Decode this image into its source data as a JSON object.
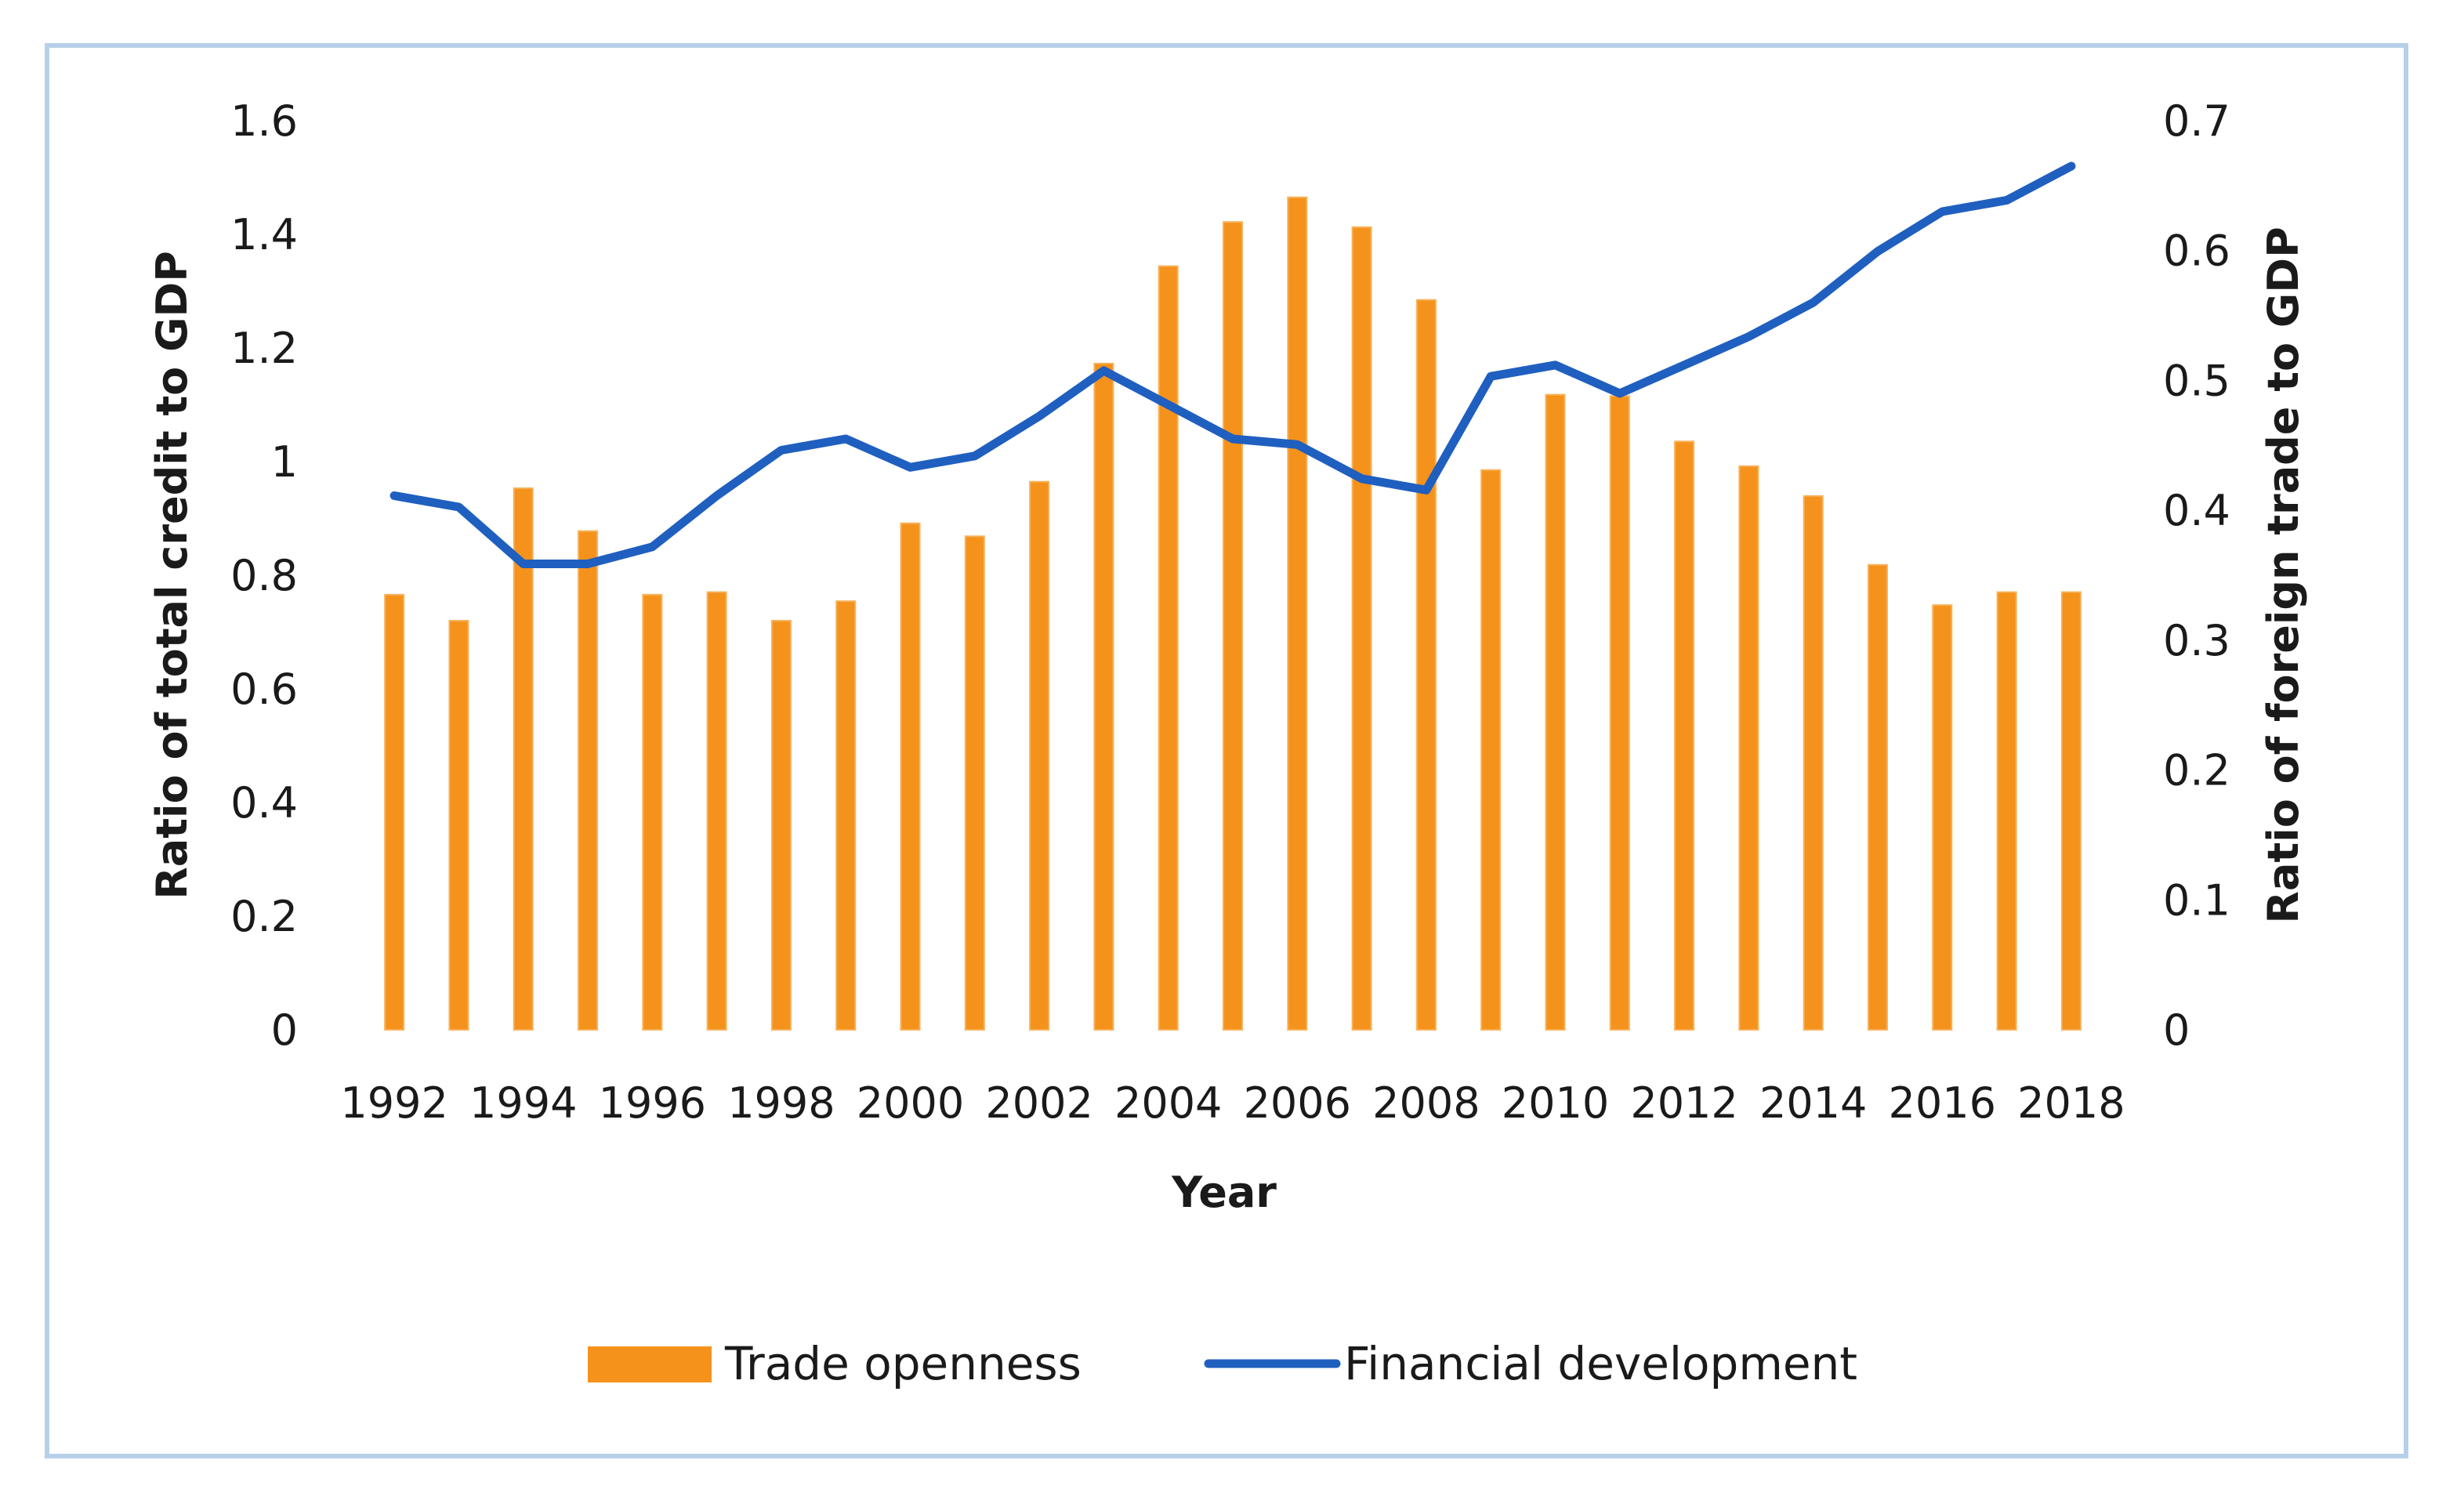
{
  "chart_data": {
    "type": "bar+line",
    "categories": [
      "1992",
      "1993",
      "1994",
      "1995",
      "1996",
      "1997",
      "1998",
      "1999",
      "2000",
      "2001",
      "2002",
      "2003",
      "2004",
      "2005",
      "2006",
      "2007",
      "2008",
      "2009",
      "2010",
      "2011",
      "2012",
      "2013",
      "2014",
      "2015",
      "2016",
      "2017",
      "2018"
    ],
    "x_tick_labels": [
      "1992",
      "1994",
      "1996",
      "1998",
      "2000",
      "2002",
      "2004",
      "2006",
      "2008",
      "2010",
      "2012",
      "2014",
      "2016",
      "2018"
    ],
    "series": [
      {
        "name": "Trade openness",
        "type": "bar",
        "axis": "right",
        "color": "#f5921b",
        "values": [
          0.335,
          0.315,
          0.417,
          0.384,
          0.335,
          0.337,
          0.315,
          0.33,
          0.39,
          0.38,
          0.422,
          0.513,
          0.588,
          0.622,
          0.641,
          0.618,
          0.562,
          0.431,
          0.489,
          0.488,
          0.453,
          0.434,
          0.411,
          0.358,
          0.327,
          0.337,
          0.337
        ]
      },
      {
        "name": "Financial development",
        "type": "line",
        "axis": "left",
        "color": "#1f5fbf",
        "values": [
          0.94,
          0.92,
          0.82,
          0.82,
          0.85,
          0.94,
          1.02,
          1.04,
          0.99,
          1.01,
          1.08,
          1.16,
          1.1,
          1.04,
          1.03,
          0.97,
          0.95,
          1.15,
          1.17,
          1.12,
          1.17,
          1.22,
          1.28,
          1.37,
          1.44,
          1.46,
          1.52
        ]
      }
    ],
    "title": "",
    "xlabel": "Year",
    "ylabel": "Ratio of total credit to GDP",
    "y2label": "Ratio of foreign trade to GDP",
    "ylim": [
      0,
      1.6
    ],
    "y2lim": [
      0,
      0.7
    ],
    "yticks": [
      "0",
      "0.2",
      "0.4",
      "0.6",
      "0.8",
      "1",
      "1.2",
      "1.4",
      "1.6"
    ],
    "y2ticks": [
      "0",
      "0.1",
      "0.2",
      "0.3",
      "0.4",
      "0.5",
      "0.6",
      "0.7"
    ],
    "grid": false,
    "legend": {
      "position": "bottom",
      "entries": [
        "Trade openness",
        "Financial development"
      ]
    }
  }
}
